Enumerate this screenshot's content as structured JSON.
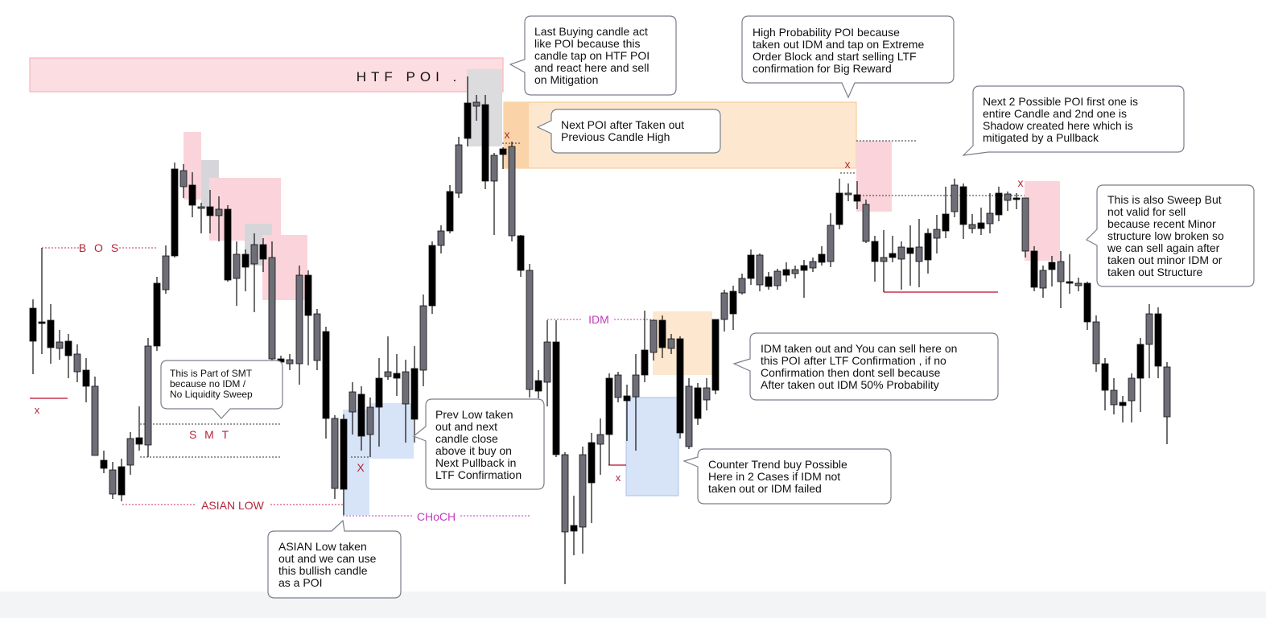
{
  "zones": {
    "htf_poi_label": "HTF POI ."
  },
  "levels": {
    "bos": "B O S",
    "smt": "S M T",
    "asian_low": "ASIAN LOW",
    "choch": "CHoCH",
    "idm": "IDM"
  },
  "markers": {
    "sweep": "x",
    "sweep_upper": "X"
  },
  "callouts": {
    "htf_reaction": [
      "Last Buying candle act",
      "like POI because this",
      "candle tap on HTF POI",
      "and react here and sell",
      "on Mitigation"
    ],
    "next_poi": [
      "Next POI after Taken out",
      "Previous Candle High"
    ],
    "high_probability": [
      "High Probability POI because",
      "taken out IDM and tap on Extreme",
      "Order Block and start selling LTF",
      "confirmation for Big Reward"
    ],
    "next_two_poi": [
      "Next 2 Possible POI first one is",
      "entire Candle and 2nd one is",
      "Shadow created here which is",
      "mitigated by a Pullback"
    ],
    "sweep_not_valid": [
      "This is also Sweep But",
      "not valid for sell",
      "because recent Minor",
      "structure low broken so",
      "we can sell again after",
      "taken out minor IDM or",
      "taken out Structure"
    ],
    "smt_part": [
      "This is Part of SMT",
      "because no IDM /",
      "No Liquidity Sweep"
    ],
    "prev_low": [
      "Prev Low taken",
      "out and next",
      "candle close",
      "above it buy on",
      "Next Pullback in",
      "LTF Confirmation"
    ],
    "idm_taken": [
      "IDM taken out and You can sell here on",
      "this POI after LTF Confirmation , if no",
      "Confirmation then dont sell because",
      "After taken out IDM 50% Probability"
    ],
    "counter_trend": [
      "Counter Trend buy Possible",
      "Here in 2 Cases if IDM not",
      "taken out or IDM failed"
    ],
    "asian_low_taken": [
      "ASIAN Low taken",
      "out and we can use",
      "this bullish candle",
      "as a POI"
    ]
  },
  "colors": {
    "bull_candle": "#6e6e78",
    "bear_candle": "#000000",
    "supply_zone": "#f8c9d2",
    "demand_zone": "#c9d9f5",
    "poi_orange": "#fde2c0",
    "grey_block": "#cfcfd3",
    "level_red": "#c6334d",
    "level_magenta": "#c33bc0"
  }
}
